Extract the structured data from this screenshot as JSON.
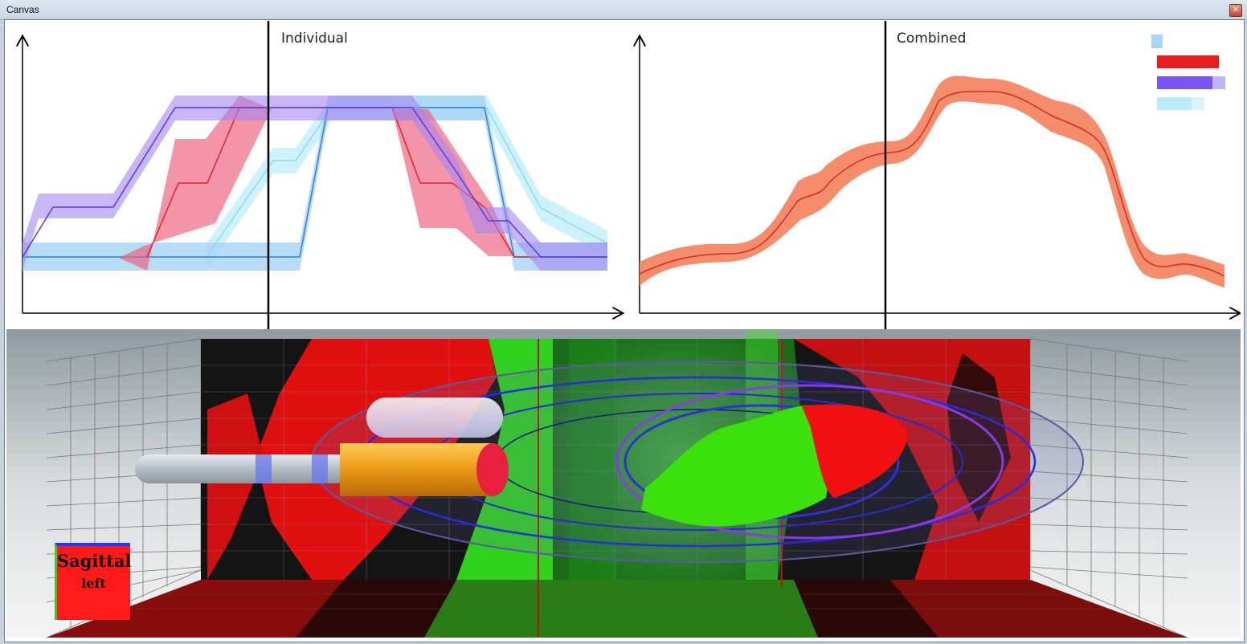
{
  "window": {
    "title": "Canvas",
    "close_label": "✕"
  },
  "plots": {
    "individual_label": "Individual",
    "combined_label": "Combined"
  },
  "legend": {
    "colors": [
      "#a9d6f3",
      "#e81e1e",
      "#7a55f5",
      "#b8ecf8"
    ]
  },
  "orientation_cube": {
    "line1": "Sagittal",
    "line2": "left",
    "colors": {
      "face": "#ff1a1a",
      "top": "#1a3cff",
      "side": "#2ad22a"
    }
  }
}
